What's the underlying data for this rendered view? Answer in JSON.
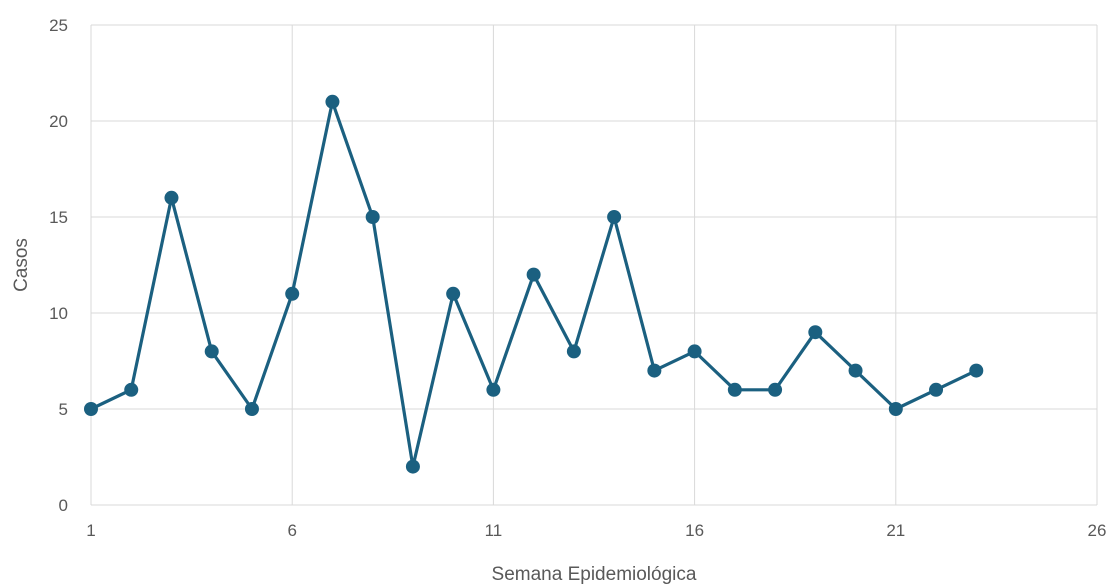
{
  "chart_data": {
    "type": "line",
    "title": "",
    "xlabel": "Semana Epidemiológica",
    "ylabel": "Casos",
    "xlim": [
      1,
      26
    ],
    "ylim": [
      0,
      25
    ],
    "x_ticks": [
      1,
      6,
      11,
      16,
      21,
      26
    ],
    "y_ticks": [
      0,
      5,
      10,
      15,
      20,
      25
    ],
    "grid": true,
    "legend": "none",
    "series": [
      {
        "x": [
          1,
          2,
          3,
          4,
          5,
          6,
          7,
          8,
          9,
          10,
          11,
          12,
          13,
          14,
          15,
          16,
          17,
          18,
          19,
          20,
          21,
          22,
          23
        ],
        "values": [
          5,
          6,
          16,
          8,
          5,
          11,
          21,
          15,
          2,
          11,
          6,
          12,
          8,
          15,
          7,
          8,
          6,
          6,
          9,
          7,
          5,
          6,
          7
        ],
        "color": "#1b6080"
      }
    ]
  }
}
